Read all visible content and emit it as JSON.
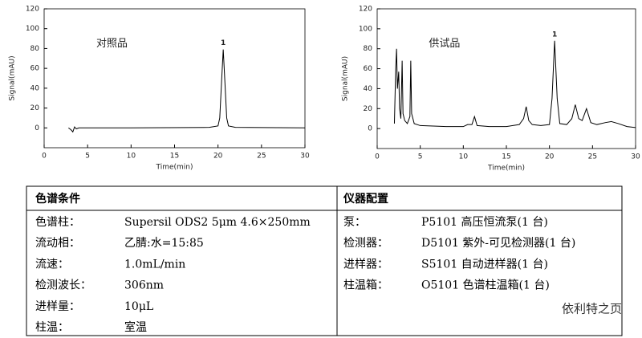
{
  "chart_data": [
    {
      "type": "line",
      "label": "对照品",
      "peak_label": "1",
      "xlabel": "Time(min)",
      "ylabel": "Signal(mAU)",
      "x": [
        2.8,
        3.1,
        3.3,
        3.5,
        3.7,
        4,
        10,
        19,
        20,
        20.2,
        20.4,
        20.6,
        20.8,
        21,
        21.2,
        22,
        30
      ],
      "values": [
        0,
        -2,
        -4,
        1,
        -1,
        0,
        0,
        0.5,
        2,
        10,
        45,
        79,
        45,
        10,
        2,
        0.5,
        0
      ],
      "color": "#000000",
      "xlim": [
        0,
        30
      ],
      "xticks": [
        0,
        5,
        10,
        15,
        20,
        25,
        30
      ],
      "ylim": [
        -20,
        120
      ],
      "yticks": [
        0,
        20,
        40,
        60,
        80,
        100,
        120
      ]
    },
    {
      "type": "line",
      "label": "供试品",
      "peak_label": "1",
      "xlabel": "Time(min)",
      "ylabel": "Signal(mAU)",
      "x": [
        2.0,
        2.15,
        2.25,
        2.35,
        2.5,
        2.6,
        2.75,
        2.9,
        3.0,
        3.2,
        3.5,
        3.8,
        3.9,
        4.0,
        4.3,
        5,
        8,
        10,
        10.5,
        11,
        11.3,
        11.6,
        13,
        15,
        16.5,
        17,
        17.3,
        17.6,
        18,
        19,
        20,
        20.3,
        20.6,
        20.9,
        21.2,
        22,
        22.6,
        23,
        23.4,
        23.8,
        24.3,
        24.8,
        25.5,
        26.5,
        27.2,
        28,
        29,
        30
      ],
      "values": [
        5,
        60,
        80,
        40,
        57,
        20,
        10,
        68,
        15,
        8,
        5,
        12,
        68,
        15,
        5,
        3,
        2,
        2,
        4,
        4,
        12,
        3,
        2,
        2,
        4,
        10,
        22,
        8,
        4,
        3,
        4,
        30,
        88,
        30,
        5,
        4,
        10,
        24,
        10,
        8,
        20,
        6,
        4,
        6,
        7,
        5,
        2,
        1
      ],
      "color": "#000000",
      "xlim": [
        0,
        30
      ],
      "xticks": [
        0,
        5,
        10,
        15,
        20,
        25,
        30
      ],
      "ylim": [
        -20,
        120
      ],
      "yticks": [
        0,
        20,
        40,
        60,
        80,
        100,
        120
      ]
    }
  ],
  "table": {
    "left": {
      "header": "色谱条件",
      "rows": [
        [
          "色谱柱：",
          "Supersil ODS2    5μm 4.6×250mm"
        ],
        [
          "流动相：",
          "乙腈:水=15:85"
        ],
        [
          "流速：",
          "1.0mL/min"
        ],
        [
          "检测波长：",
          "306nm"
        ],
        [
          "进样量：",
          "10μL"
        ],
        [
          "柱温：",
          "室温"
        ]
      ]
    },
    "right": {
      "header": "仪器配置",
      "rows": [
        [
          "泵：",
          "P5101 高压恒流泵(1 台)"
        ],
        [
          "检测器：",
          "D5101 紫外-可见检测器(1 台)"
        ],
        [
          "进样器：",
          "S5101 自动进样器(1 台)"
        ],
        [
          "柱温箱：",
          "O5101 色谱柱温箱(1 台)"
        ]
      ]
    }
  },
  "watermark": "依利特之页"
}
